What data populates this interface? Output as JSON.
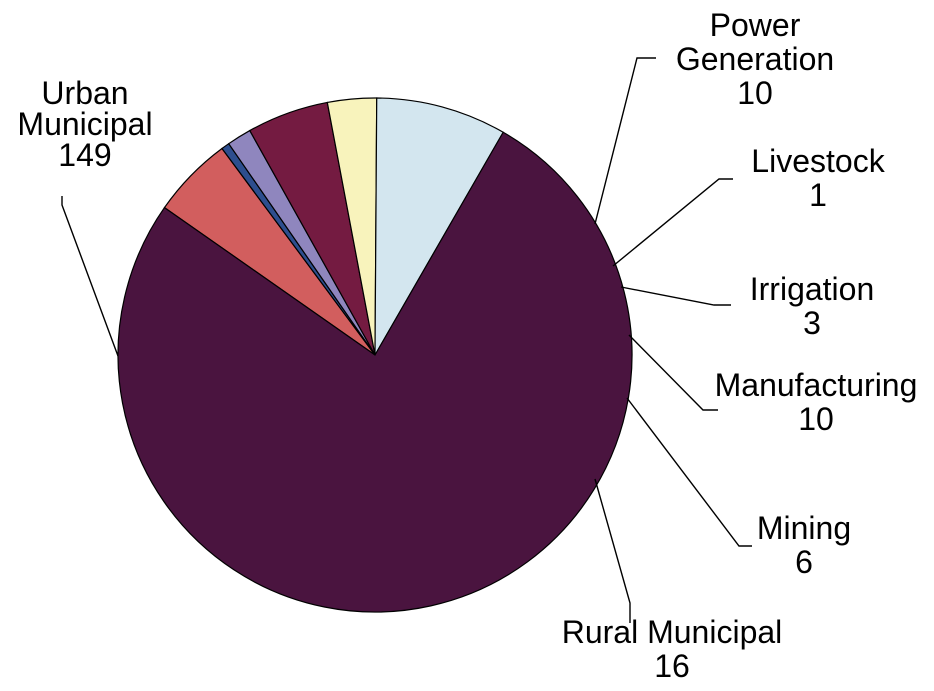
{
  "chart_data": {
    "type": "pie",
    "start_angle_deg": 145,
    "direction": "clockwise",
    "slices": [
      {
        "name": "Power Generation",
        "label_lines": [
          "Power",
          "Generation",
          "10"
        ],
        "value": 10,
        "color": "#D25E5E"
      },
      {
        "name": "Livestock",
        "label_lines": [
          "Livestock",
          "1"
        ],
        "value": 1,
        "color": "#2D4E8E"
      },
      {
        "name": "Irrigation",
        "label_lines": [
          "Irrigation",
          "3"
        ],
        "value": 3,
        "color": "#8F86BE"
      },
      {
        "name": "Manufacturing",
        "label_lines": [
          "Manufacturing",
          "10"
        ],
        "value": 10,
        "color": "#741B41"
      },
      {
        "name": "Mining",
        "label_lines": [
          "Mining",
          "6"
        ],
        "value": 6,
        "color": "#F8F3BC"
      },
      {
        "name": "Rural Municipal",
        "label_lines": [
          "Rural Municipal",
          "16"
        ],
        "value": 16,
        "color": "#D3E6EF"
      },
      {
        "name": "Urban Municipal",
        "label_lines": [
          "Urban",
          "Municipal",
          "149"
        ],
        "value": 149,
        "color": "#4A143F"
      }
    ]
  }
}
